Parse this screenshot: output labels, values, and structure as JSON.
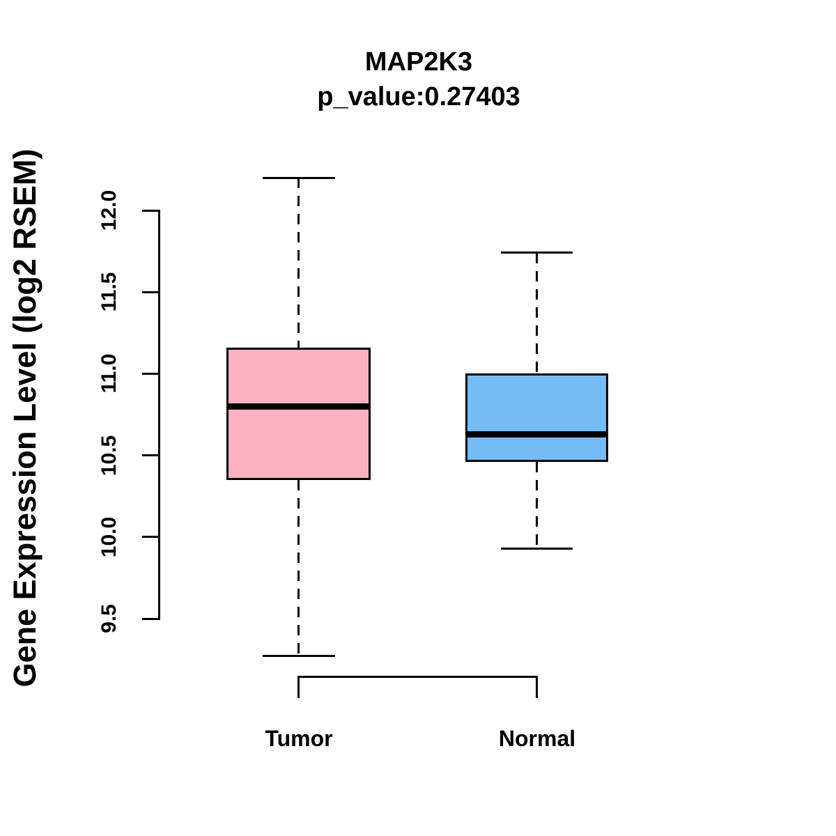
{
  "chart_data": {
    "type": "boxplot",
    "title": "MAP2K3",
    "subtitle": "p_value:0.27403",
    "p_value": 0.27403,
    "ylabel": "Gene Expression Level (log2 RSEM)",
    "xlabel": "",
    "ylim": [
      9.5,
      12.0
    ],
    "yticks": [
      9.5,
      10.0,
      10.5,
      11.0,
      11.5,
      12.0
    ],
    "grid": false,
    "legend": "none",
    "categories": [
      "Tumor",
      "Normal"
    ],
    "series": [
      {
        "name": "Tumor",
        "fill_color": "#FCB1C3",
        "stroke_color": "#000000",
        "min": 9.27,
        "q1": 10.35,
        "median": 10.8,
        "q3": 11.16,
        "max": 12.2,
        "whisker_style": "dashed"
      },
      {
        "name": "Normal",
        "fill_color": "#74BCF5",
        "stroke_color": "#000000",
        "min": 9.93,
        "q1": 10.46,
        "median": 10.63,
        "q3": 11.0,
        "max": 11.74,
        "whisker_style": "dashed"
      }
    ]
  },
  "colors": {
    "background": "#FFFFFF",
    "axis": "#000000",
    "text": "#000000",
    "tumor_fill": "#FCB1C3",
    "normal_fill": "#74BCF5"
  }
}
